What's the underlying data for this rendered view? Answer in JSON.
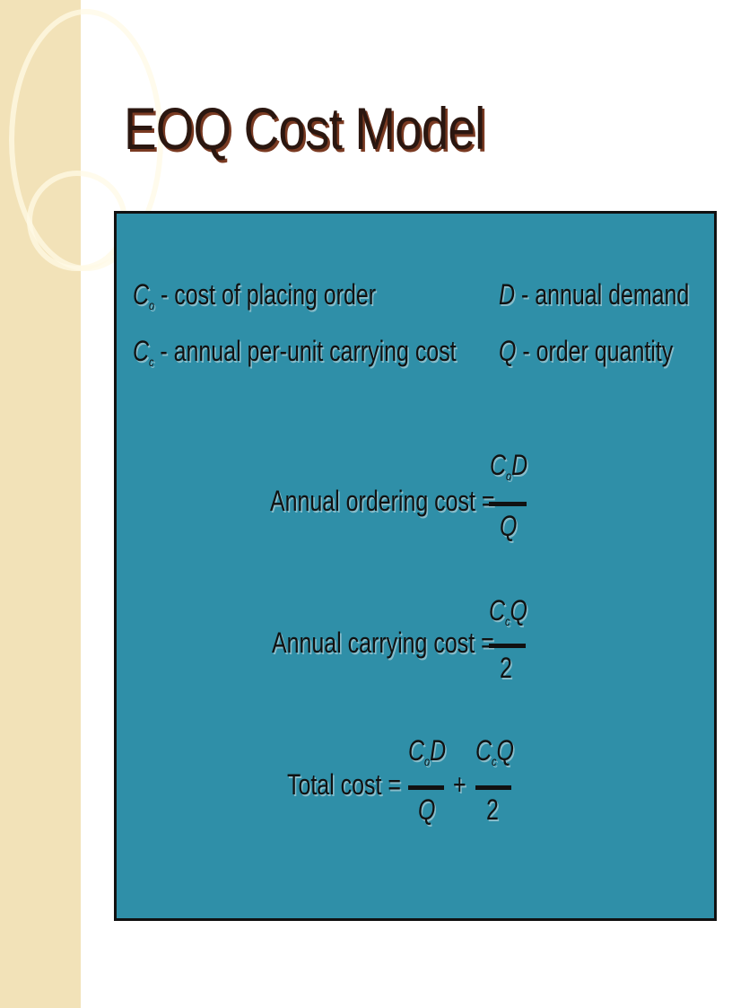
{
  "title": "EOQ Cost Model",
  "definitions": [
    {
      "symbol": "C",
      "sub": "o",
      "text": " - cost of placing order"
    },
    {
      "symbol": "C",
      "sub": "c",
      "text": " - annual per-unit carrying cost"
    },
    {
      "symbol": "D",
      "text": " - annual demand"
    },
    {
      "symbol": "Q",
      "text": " - order quantity"
    }
  ],
  "equations": {
    "ordering": {
      "label": "Annual ordering cost =",
      "num_sym": "C",
      "num_sub": "o",
      "num_rest": "D",
      "den": "Q"
    },
    "carrying": {
      "label": "Annual carrying cost =",
      "num_sym": "C",
      "num_sub": "c",
      "num_rest": "Q",
      "den": "2"
    },
    "total": {
      "label": "Total cost =",
      "plus": "+",
      "t1": {
        "num_sym": "C",
        "num_sub": "o",
        "num_rest": "D",
        "den": "Q"
      },
      "t2": {
        "num_sym": "C",
        "num_sub": "c",
        "num_rest": "Q",
        "den": "2"
      }
    }
  },
  "colors": {
    "panel": "#2f8fa8",
    "sidebar": "#f2e2b8",
    "title": "#2b1710"
  }
}
